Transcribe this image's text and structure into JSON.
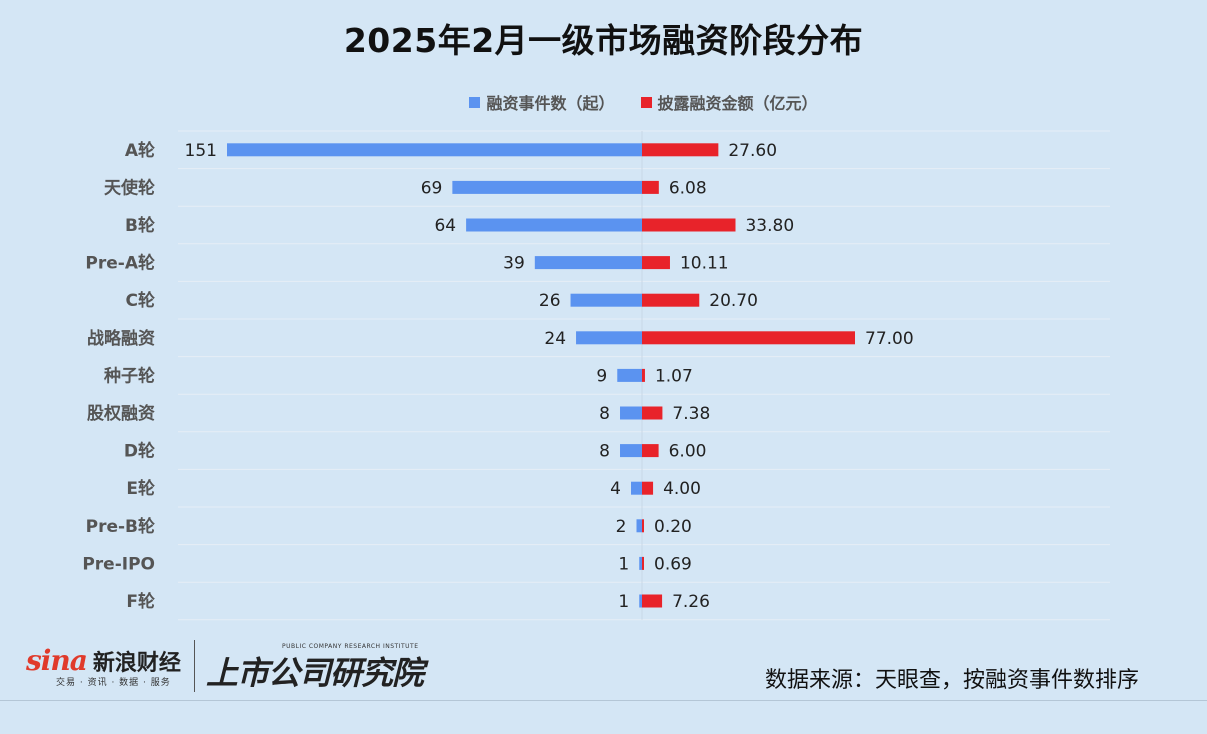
{
  "title": "2025年2月一级市场融资阶段分布",
  "legend": {
    "series1": "融资事件数（起）",
    "series2": "披露融资金额（亿元）"
  },
  "colors": {
    "background": "#d4e6f5",
    "series1": "#5b93f0",
    "series2": "#e8232a",
    "grid": "#e6eef6"
  },
  "chart_data": {
    "type": "bar",
    "orientation": "horizontal-butterfly",
    "categories": [
      "A轮",
      "天使轮",
      "B轮",
      "Pre-A轮",
      "C轮",
      "战略融资",
      "种子轮",
      "股权融资",
      "D轮",
      "E轮",
      "Pre-B轮",
      "Pre-IPO",
      "F轮"
    ],
    "series": [
      {
        "name": "融资事件数（起）",
        "side": "left",
        "values": [
          151,
          69,
          64,
          39,
          26,
          24,
          9,
          8,
          8,
          4,
          2,
          1,
          1
        ],
        "labels": [
          "151",
          "69",
          "64",
          "39",
          "26",
          "24",
          "9",
          "8",
          "8",
          "4",
          "2",
          "1",
          "1"
        ]
      },
      {
        "name": "披露融资金额（亿元）",
        "side": "right",
        "values": [
          27.6,
          6.08,
          33.8,
          10.11,
          20.7,
          77.0,
          1.07,
          7.38,
          6.0,
          4.0,
          0.2,
          0.69,
          7.26
        ],
        "labels": [
          "27.60",
          "6.08",
          "33.80",
          "10.11",
          "20.70",
          "77.00",
          "1.07",
          "7.38",
          "6.00",
          "4.00",
          "0.20",
          "0.69",
          "7.26"
        ]
      }
    ],
    "legend_position": "top-center",
    "grid": true
  },
  "footer": {
    "sina_mark": "sina",
    "sina_name": "新浪财经",
    "sina_sub": "交易 · 资讯 · 数据 · 服务",
    "institute_en": "PUBLIC COMPANY RESEARCH INSTITUTE",
    "institute_cn": "上市公司研究院",
    "source": "数据来源：天眼查，按融资事件数排序"
  }
}
